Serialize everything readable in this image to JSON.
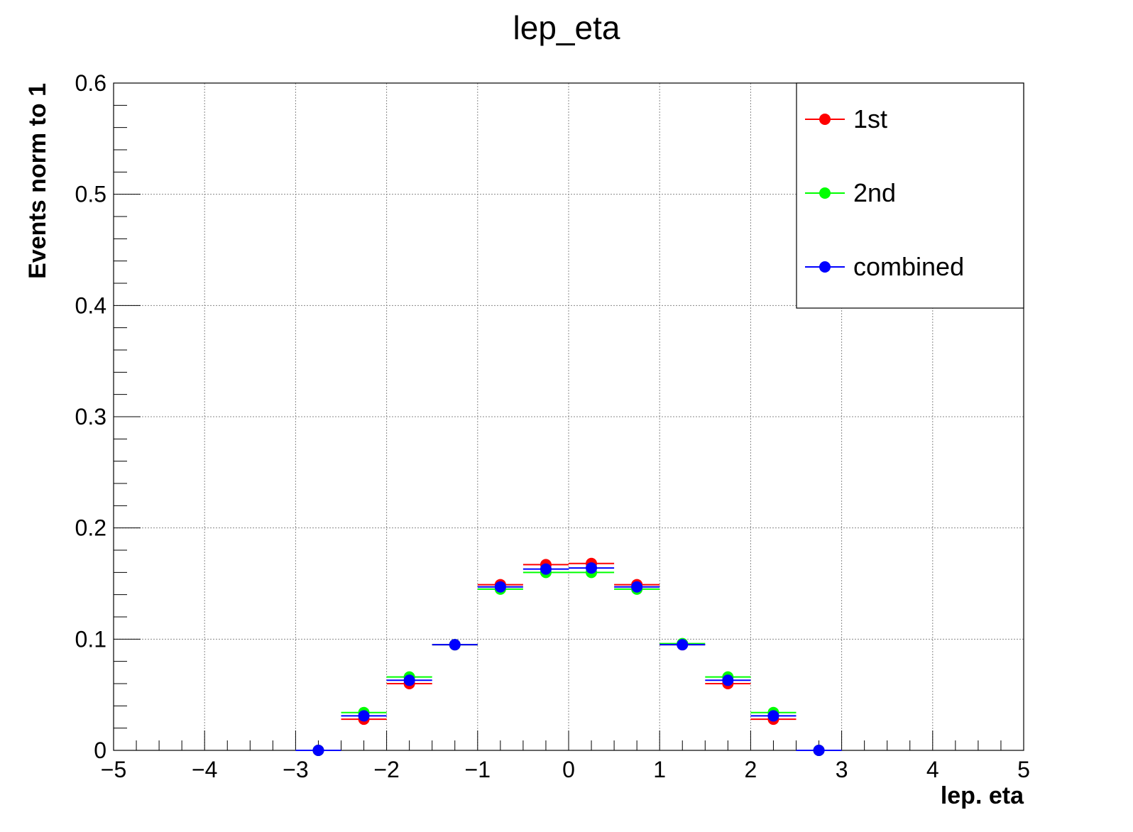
{
  "chart_data": {
    "type": "scatter",
    "title": "lep_eta",
    "xlabel": "lep. eta",
    "ylabel": "Events norm to 1",
    "xlim": [
      -5,
      5
    ],
    "ylim": [
      0,
      0.6
    ],
    "x_ticks": [
      -5,
      -4,
      -3,
      -2,
      -1,
      0,
      1,
      2,
      3,
      4,
      5
    ],
    "x_tick_labels": [
      "−5",
      "−4",
      "−3",
      "−2",
      "−1",
      "0",
      "1",
      "2",
      "3",
      "4",
      "5"
    ],
    "y_ticks": [
      0,
      0.1,
      0.2,
      0.3,
      0.4,
      0.5,
      0.6
    ],
    "y_tick_labels": [
      "0",
      "0.1",
      "0.2",
      "0.3",
      "0.4",
      "0.5",
      "0.6"
    ],
    "grid": true,
    "legend_position": "top-right",
    "bin_width": 0.5,
    "x": [
      -2.75,
      -2.25,
      -1.75,
      -1.25,
      -0.75,
      -0.25,
      0.25,
      0.75,
      1.25,
      1.75,
      2.25,
      2.75
    ],
    "series": [
      {
        "name": "1st",
        "color": "#ff0000",
        "values": [
          0.0,
          0.028,
          0.06,
          0.095,
          0.149,
          0.167,
          0.168,
          0.149,
          0.095,
          0.06,
          0.028,
          0.0
        ]
      },
      {
        "name": "2nd",
        "color": "#00ff00",
        "values": [
          0.0,
          0.034,
          0.066,
          0.095,
          0.145,
          0.16,
          0.16,
          0.145,
          0.096,
          0.066,
          0.034,
          0.0
        ]
      },
      {
        "name": "combined",
        "color": "#0000ff",
        "values": [
          0.0,
          0.031,
          0.063,
          0.095,
          0.147,
          0.163,
          0.164,
          0.147,
          0.095,
          0.063,
          0.031,
          0.0
        ]
      }
    ]
  }
}
